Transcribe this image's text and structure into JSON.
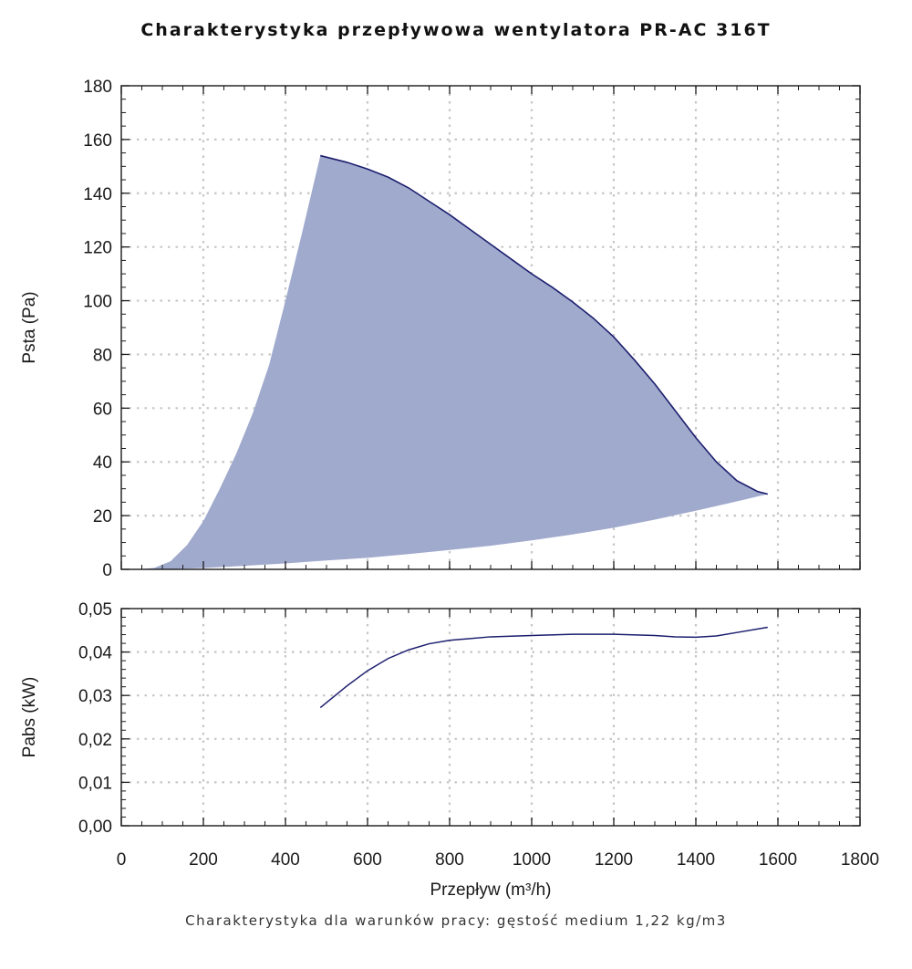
{
  "chart_data": [
    {
      "type": "area",
      "title": "Charakterystyka przepływowa wentylatora PR-AC 316T",
      "ylabel": "Psta (Pa)",
      "xlabel": "",
      "xlim": [
        0,
        1800
      ],
      "ylim": [
        0,
        180
      ],
      "x_ticks": [
        0,
        200,
        400,
        600,
        800,
        1000,
        1200,
        1400,
        1600,
        1800
      ],
      "y_ticks": [
        0,
        20,
        40,
        60,
        80,
        100,
        120,
        140,
        160,
        180
      ],
      "y_tick_labels": [
        "0",
        "20",
        "40",
        "60",
        "80",
        "100",
        "120",
        "140",
        "160",
        "180"
      ],
      "grid": true,
      "series": [
        {
          "role": "upper-boundary",
          "x": [
            485,
            550,
            600,
            650,
            700,
            750,
            800,
            850,
            900,
            950,
            1000,
            1050,
            1100,
            1150,
            1200,
            1250,
            1300,
            1350,
            1400,
            1450,
            1500,
            1550,
            1575
          ],
          "y": [
            154,
            151.5,
            149,
            146,
            142,
            137,
            132,
            126.5,
            121,
            115.5,
            110,
            105,
            99.5,
            93.5,
            86.5,
            78,
            69,
            59,
            49,
            40,
            33,
            29,
            28
          ]
        },
        {
          "role": "lower-boundary",
          "x": [
            485,
            440,
            400,
            360,
            320,
            280,
            240,
            200,
            160,
            120,
            80,
            40,
            0,
            100,
            200,
            300,
            400,
            500,
            600,
            700,
            800,
            900,
            1000,
            1100,
            1200,
            1300,
            1400,
            1500,
            1575
          ],
          "y": [
            154,
            125,
            100,
            76,
            58,
            43,
            30,
            18,
            9,
            3,
            0.5,
            0,
            0,
            0,
            0.5,
            1.3,
            2.2,
            3.3,
            4.3,
            5.7,
            7.2,
            8.8,
            10.8,
            13,
            15.5,
            18.5,
            21.8,
            25.3,
            28
          ]
        }
      ],
      "colors": {
        "fill": "#a0aacd",
        "line": "#1c1e6e",
        "grid": "#c6c6c6"
      }
    },
    {
      "type": "line",
      "ylabel": "Pabs (kW)",
      "xlabel": "Przepływ (m³/h)",
      "xlim": [
        0,
        1800
      ],
      "ylim": [
        0,
        0.05
      ],
      "x_ticks": [
        0,
        200,
        400,
        600,
        800,
        1000,
        1200,
        1400,
        1600,
        1800
      ],
      "x_tick_labels": [
        "0",
        "200",
        "400",
        "600",
        "800",
        "1000",
        "1200",
        "1400",
        "1600",
        "1800"
      ],
      "y_ticks": [
        0,
        0.01,
        0.02,
        0.03,
        0.04,
        0.05
      ],
      "y_tick_labels": [
        "0,00",
        "0,01",
        "0,02",
        "0,03",
        "0,04",
        "0,05"
      ],
      "grid": true,
      "series": [
        {
          "x": [
            485,
            550,
            600,
            650,
            700,
            750,
            800,
            900,
            1000,
            1100,
            1200,
            1300,
            1350,
            1400,
            1450,
            1500,
            1575
          ],
          "y": [
            0.0272,
            0.0322,
            0.0357,
            0.0385,
            0.0405,
            0.0419,
            0.0427,
            0.0435,
            0.0438,
            0.0441,
            0.0441,
            0.0438,
            0.0435,
            0.0434,
            0.0437,
            0.0445,
            0.0457
          ]
        }
      ],
      "colors": {
        "line": "#1c1e6e",
        "grid": "#c6c6c6"
      }
    }
  ],
  "footnote": "Charakterystyka dla warunków pracy: gęstość medium 1,22 kg/m3"
}
